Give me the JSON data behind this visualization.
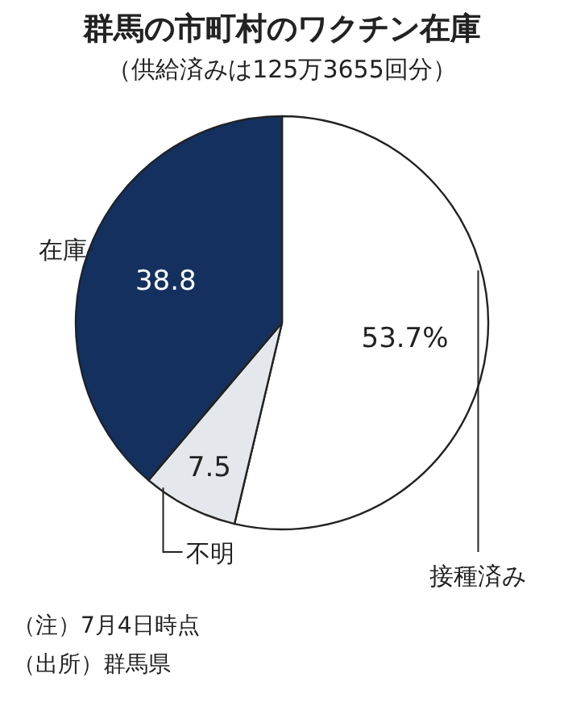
{
  "chart_data": {
    "type": "pie",
    "title": "群馬の市町村のワクチン在庫",
    "subtitle": "（供給済みは125万3655回分）",
    "categories": [
      "接種済み",
      "不明",
      "在庫"
    ],
    "values": [
      53.7,
      7.5,
      38.8
    ],
    "colors": [
      "#ffffff",
      "#e4e7ec",
      "#14305e"
    ],
    "value_labels": [
      "53.7%",
      "7.5",
      "38.8"
    ],
    "annotations": [
      "（注）7月4日時点",
      "（出所）群馬県"
    ]
  }
}
